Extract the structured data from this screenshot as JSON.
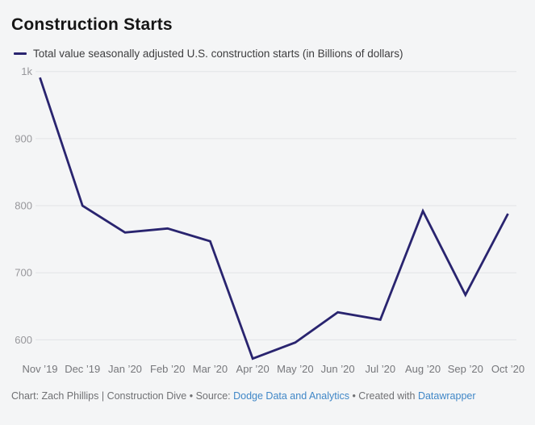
{
  "chart": {
    "title": "Construction Starts",
    "legend": {
      "label": "Total value seasonally adjusted U.S. construction starts (in Billions of dollars)"
    },
    "footer": {
      "prefix": "Chart: Zach Phillips | Construction Dive ",
      "bullet1": "•",
      "source_label": " Source: ",
      "source_link": "Dodge Data and Analytics",
      "bullet2": " • ",
      "created_label": "Created with ",
      "creator_link": "Datawrapper"
    }
  },
  "chart_data": {
    "type": "line",
    "title": "Construction Starts",
    "xlabel": "",
    "ylabel": "",
    "categories": [
      "Nov ’19",
      "Dec ’19",
      "Jan ’20",
      "Feb ’20",
      "Mar ’20",
      "Apr ’20",
      "May ’20",
      "Jun ’20",
      "Jul ’20",
      "Aug ’20",
      "Sep ’20",
      "Oct ’20"
    ],
    "series": [
      {
        "name": "Total value seasonally adjusted U.S. construction starts (in Billions of dollars)",
        "values": [
          991,
          800,
          760,
          766,
          747,
          572,
          596,
          641,
          630,
          792,
          667,
          788
        ]
      }
    ],
    "ylim": [
      560,
      1005
    ],
    "yticks": [
      {
        "value": 1000,
        "label": "1k"
      },
      {
        "value": 900,
        "label": "900"
      },
      {
        "value": 800,
        "label": "800"
      },
      {
        "value": 700,
        "label": "700"
      },
      {
        "value": 600,
        "label": "600"
      }
    ],
    "grid": true,
    "legend_position": "top-left"
  },
  "colors": {
    "line": "#29246f",
    "background": "#f4f5f6",
    "grid": "#e2e3e7",
    "y_tick_text": "#97979b",
    "x_tick_text": "#76777b",
    "footer_text": "#6f7073",
    "link": "#4087c7",
    "title_text": "#161616"
  }
}
